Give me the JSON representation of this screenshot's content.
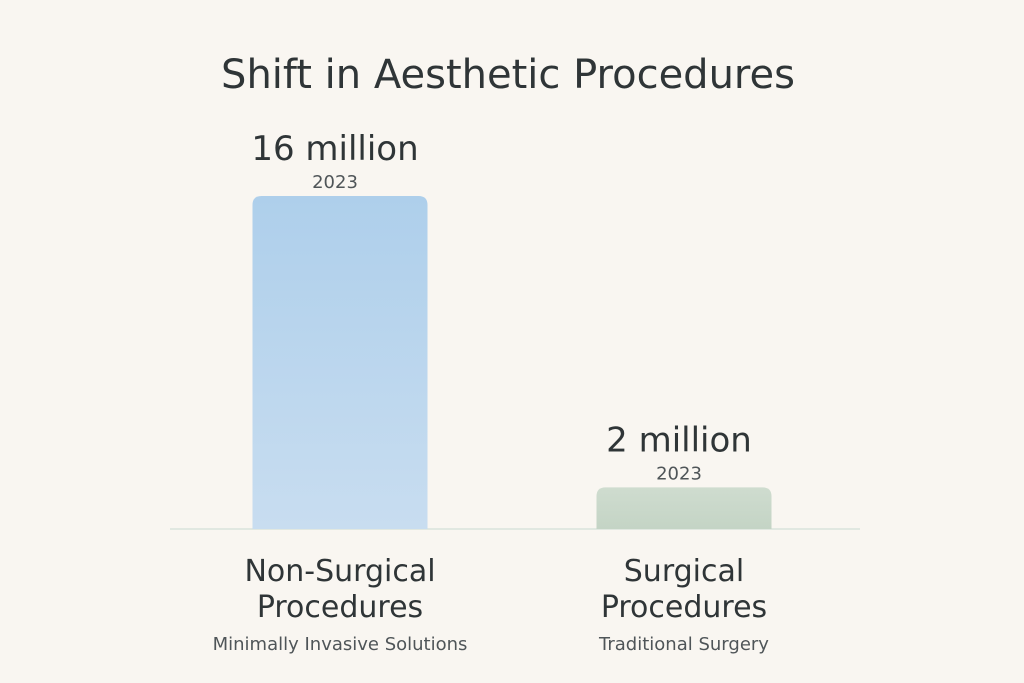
{
  "chart_data": {
    "type": "bar",
    "title": "Shift in Aesthetic Procedures",
    "unit": "million",
    "categories": [
      {
        "label_lines": [
          "Non-Surgical",
          "Procedures"
        ],
        "subtitle": "Minimally Invasive Solutions",
        "value": 16,
        "value_label": "16 million",
        "year": "2023",
        "color_top": "#aecfeb",
        "color_bottom": "#c8ddf0"
      },
      {
        "label_lines": [
          "Surgical",
          "Procedures"
        ],
        "subtitle": "Traditional Surgery",
        "value": 2,
        "value_label": "2 million",
        "year": "2023",
        "color_top": "#cfdccf",
        "color_bottom": "#c4d4c5"
      }
    ],
    "ylim": [
      0,
      16
    ],
    "grid": false,
    "legend": "none",
    "baseline_color": "#d9e3dc"
  }
}
